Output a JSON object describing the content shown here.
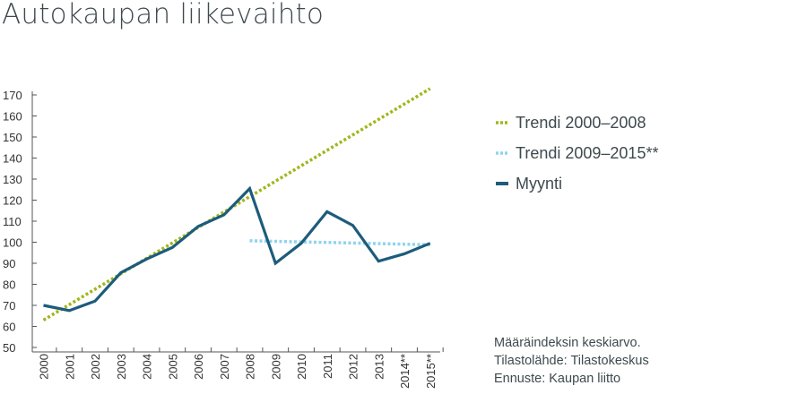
{
  "title": "Autokaupan liikevaihto",
  "chart_data": {
    "type": "line",
    "title": "Autokaupan liikevaihto",
    "categories": [
      "2000",
      "2001",
      "2002",
      "2003",
      "2004",
      "2005",
      "2006",
      "2007",
      "2008",
      "2009",
      "2010",
      "2011",
      "2012",
      "2013",
      "2014**",
      "2015**"
    ],
    "ylim": [
      50,
      170
    ],
    "yticks": [
      50,
      60,
      70,
      80,
      90,
      100,
      110,
      120,
      130,
      140,
      150,
      160,
      170
    ],
    "grid": false,
    "legend_position": "right",
    "series": [
      {
        "name": "Trendi 2000–2008",
        "style": "dotted",
        "color": "#a2b61c",
        "x_start": 2000,
        "x_end": 2015,
        "y_start": 63,
        "y_end": 173
      },
      {
        "name": "Trendi 2009–2015**",
        "style": "dotted",
        "color": "#8fd3f0",
        "x_start": 2008,
        "x_end": 2015,
        "y_start": 100.7,
        "y_end": 98.8
      },
      {
        "name": "Myynti",
        "style": "solid",
        "color": "#1d5c7b",
        "values": [
          70,
          67.5,
          72,
          85.5,
          92,
          97.5,
          107.5,
          113,
          125.5,
          90,
          99.5,
          114.5,
          108,
          91,
          94.5,
          99.5
        ]
      }
    ]
  },
  "notes": [
    "Määräindeksin keskiarvo.",
    "Tilastolähde: Tilastokeskus",
    "Ennuste: Kaupan liitto"
  ]
}
